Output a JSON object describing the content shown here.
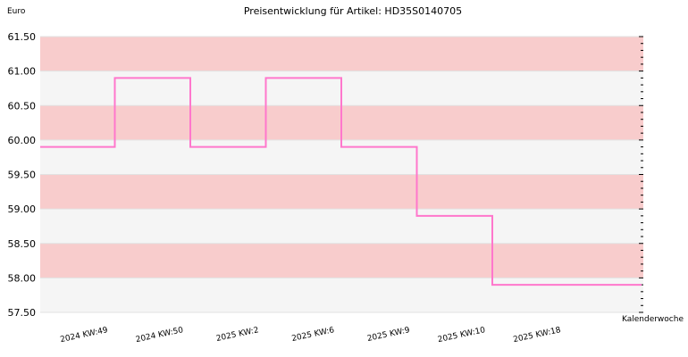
{
  "chart_data": {
    "type": "line",
    "title": "Preisentwicklung für Artikel: HD35S0140705",
    "ylabel": "Euro",
    "xlabel": "Kalenderwoche",
    "ylim": [
      57.5,
      61.5
    ],
    "y_ticks": [
      "61.50",
      "61.00",
      "60.50",
      "60.00",
      "59.50",
      "59.00",
      "58.50",
      "58.00",
      "57.50"
    ],
    "categories": [
      "2024 KW:49",
      "2024 KW:50",
      "2025 KW:2",
      "2025 KW:6",
      "2025 KW:9",
      "2025 KW:10",
      "2025 KW:18"
    ],
    "series": [
      {
        "values": [
          59.9,
          60.9,
          59.9,
          60.9,
          59.9,
          58.9,
          57.9
        ]
      }
    ],
    "step": true,
    "grid": true,
    "colors": {
      "line": "#ff77cc",
      "band_dark": "#f8cccc",
      "band_light": "#f5f5f5"
    }
  }
}
